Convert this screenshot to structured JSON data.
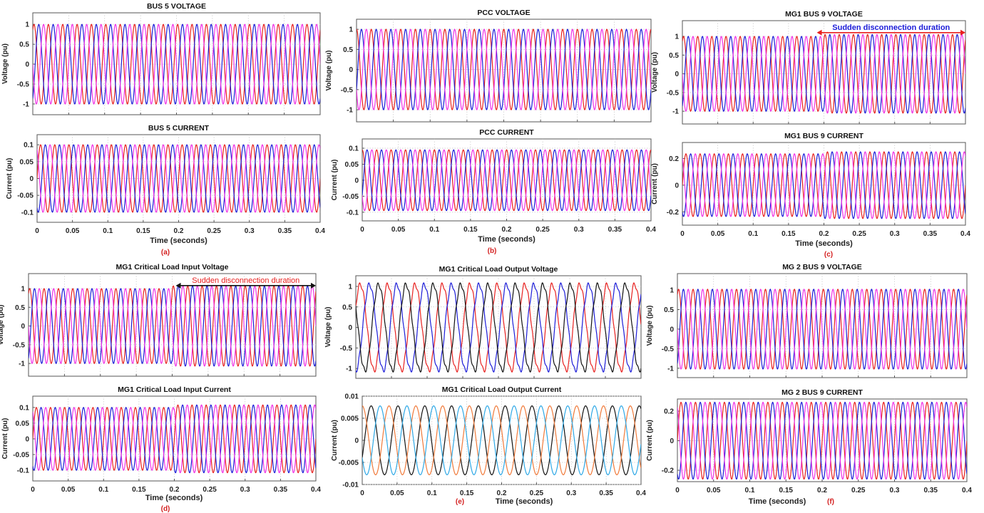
{
  "chart_data": [
    {
      "panel": "a",
      "type": "line",
      "title": "BUS 5 VOLTAGE",
      "ylabel": "Voltage (pu)",
      "xlabel": "",
      "xlim": [
        0,
        0.4
      ],
      "ylim": [
        -1.27,
        1.29
      ],
      "yticks": [
        "-1",
        "-0.5",
        "0",
        "0.5",
        "1"
      ],
      "ytick_values": [
        -1,
        -0.5,
        0,
        0.5,
        1
      ],
      "grid": true,
      "series": [
        {
          "color": "#e8201f",
          "amplitude": 1,
          "frequency_hz": 50,
          "phase_deg": 60
        },
        {
          "color": "#1c1cd8",
          "amplitude": 1,
          "frequency_hz": 50,
          "phase_deg": -60
        },
        {
          "color": "#f032e6",
          "amplitude": 1,
          "frequency_hz": 50,
          "phase_deg": 180
        }
      ]
    },
    {
      "panel": "a",
      "type": "line",
      "title": "BUS 5 CURRENT",
      "ylabel": "Current (pu)",
      "xlabel": "Time (seconds)",
      "xlim": [
        0,
        0.4
      ],
      "ylim": [
        -0.13,
        0.13
      ],
      "yticks": [
        "-0.1",
        "-0.05",
        "0",
        "0.05",
        "0.1"
      ],
      "ytick_values": [
        -0.1,
        -0.05,
        0,
        0.05,
        0.1
      ],
      "grid": true,
      "xticks": [
        "0",
        "0.05",
        "0.1",
        "0.15",
        "0.2",
        "0.25",
        "0.3",
        "0.35",
        "0.4"
      ],
      "series": [
        {
          "color": "#e8201f",
          "amplitude": 0.1,
          "frequency_hz": 50,
          "phase_deg": 0
        },
        {
          "color": "#1c1cd8",
          "amplitude": 0.1,
          "frequency_hz": 50,
          "phase_deg": -120
        },
        {
          "color": "#f032e6",
          "amplitude": 0.1,
          "frequency_hz": 50,
          "phase_deg": 120
        }
      ]
    },
    {
      "panel": "b",
      "type": "line",
      "title": "PCC VOLTAGE",
      "ylabel": "Voltage (pu)",
      "xlabel": "",
      "xlim": [
        0,
        0.4
      ],
      "ylim": [
        -1.3,
        1.25
      ],
      "yticks": [
        "-1",
        "-0.5",
        "0",
        "0.5",
        "1"
      ],
      "ytick_values": [
        -1,
        -0.5,
        0,
        0.5,
        1
      ],
      "grid": true,
      "series": [
        {
          "color": "#e8201f",
          "amplitude": 1,
          "frequency_hz": 50,
          "phase_deg": 90
        },
        {
          "color": "#1c1cd8",
          "amplitude": 1,
          "frequency_hz": 50,
          "phase_deg": -30
        },
        {
          "color": "#f032e6",
          "amplitude": 1,
          "frequency_hz": 50,
          "phase_deg": 210
        }
      ]
    },
    {
      "panel": "b",
      "type": "line",
      "title": "PCC CURRENT",
      "ylabel": "Current (pu)",
      "xlabel": "Time (seconds)",
      "xlim": [
        0,
        0.4
      ],
      "ylim": [
        -0.127,
        0.129
      ],
      "yticks": [
        "-0.1",
        "-0.05",
        "0",
        "0.05",
        "0.1"
      ],
      "ytick_values": [
        -0.1,
        -0.05,
        0,
        0.05,
        0.1
      ],
      "grid": true,
      "xticks": [
        "0",
        "0.05",
        "0.1",
        "0.15",
        "0.2",
        "0.25",
        "0.3",
        "0.35",
        "0.4"
      ],
      "series": [
        {
          "color": "#e8201f",
          "amplitude": 0.095,
          "frequency_hz": 50,
          "phase_deg": 90
        },
        {
          "color": "#1c1cd8",
          "amplitude": 0.095,
          "frequency_hz": 50,
          "phase_deg": -30
        },
        {
          "color": "#f032e6",
          "amplitude": 0.095,
          "frequency_hz": 50,
          "phase_deg": 210
        }
      ]
    },
    {
      "panel": "c",
      "type": "line",
      "title": "MG1 BUS 9 VOLTAGE",
      "ylabel": "Voltage (pu)",
      "xlabel": "",
      "xlim": [
        0,
        0.4
      ],
      "ylim": [
        -1.34,
        1.42
      ],
      "yticks": [
        "-1",
        "-0.5",
        "0",
        "0.5",
        "1"
      ],
      "ytick_values": [
        -1,
        -0.5,
        0,
        0.5,
        1
      ],
      "grid": true,
      "annotation": {
        "text": "Sudden disconnection duration",
        "x_range": [
          0.19,
          0.4
        ],
        "y": 1.1,
        "text_color": "#1c1cd8",
        "arrow_color": "#e8201f"
      },
      "series": [
        {
          "color": "#e8201f",
          "amplitude": 1,
          "amplitude_after_0_2s": 1.05,
          "frequency_hz": 50,
          "phase_deg": 60
        },
        {
          "color": "#1c1cd8",
          "amplitude": 1,
          "amplitude_after_0_2s": 1.05,
          "frequency_hz": 50,
          "phase_deg": -60
        },
        {
          "color": "#f032e6",
          "amplitude": 1,
          "amplitude_after_0_2s": 1.05,
          "frequency_hz": 50,
          "phase_deg": 180
        }
      ]
    },
    {
      "panel": "c",
      "type": "line",
      "title": "MG1 BUS 9 CURRENT",
      "ylabel": "Current (pu)",
      "xlabel": "Time (seconds)",
      "xlim": [
        0,
        0.4
      ],
      "ylim": [
        -0.3,
        0.32
      ],
      "yticks": [
        "-0.2",
        "0",
        "0.2"
      ],
      "ytick_values": [
        -0.2,
        0,
        0.2
      ],
      "grid": true,
      "xticks": [
        "0",
        "0.05",
        "0.1",
        "0.15",
        "0.2",
        "0.25",
        "0.3",
        "0.35",
        "0.4"
      ],
      "series": [
        {
          "color": "#e8201f",
          "amplitude": 0.235,
          "amplitude_after_0_2s": 0.25,
          "frequency_hz": 50,
          "phase_deg": 0
        },
        {
          "color": "#1c1cd8",
          "amplitude": 0.235,
          "amplitude_after_0_2s": 0.25,
          "frequency_hz": 50,
          "phase_deg": -120
        },
        {
          "color": "#f032e6",
          "amplitude": 0.235,
          "amplitude_after_0_2s": 0.25,
          "frequency_hz": 50,
          "phase_deg": 120
        }
      ]
    },
    {
      "panel": "d",
      "type": "line",
      "title": "MG1 Critical Load Input Voltage",
      "ylabel": "Voltage (pu)",
      "xlabel": "",
      "xlim": [
        0,
        0.4
      ],
      "ylim": [
        -1.34,
        1.4
      ],
      "yticks": [
        "-1",
        "-0.5",
        "0",
        "0.5",
        "1"
      ],
      "ytick_values": [
        -1,
        -0.5,
        0,
        0.5,
        1
      ],
      "grid": true,
      "annotation": {
        "text": "Sudden disconnection duration",
        "x_range": [
          0.205,
          0.4
        ],
        "y": 1.08,
        "text_color": "#e8201f",
        "arrow_color": "#111111"
      },
      "series": [
        {
          "color": "#e8201f",
          "amplitude": 1,
          "amplitude_after_0_2s": 1.07,
          "frequency_hz": 50,
          "phase_deg": 60
        },
        {
          "color": "#1c1cd8",
          "amplitude": 1,
          "amplitude_after_0_2s": 1.07,
          "frequency_hz": 50,
          "phase_deg": -60
        },
        {
          "color": "#f032e6",
          "amplitude": 1,
          "amplitude_after_0_2s": 1.07,
          "frequency_hz": 50,
          "phase_deg": 180
        }
      ]
    },
    {
      "panel": "d",
      "type": "line",
      "title": "MG1 Critical Load Input Current",
      "ylabel": "Current (pu)",
      "xlabel": "Time (seconds)",
      "xlim": [
        0,
        0.4
      ],
      "ylim": [
        -0.134,
        0.136
      ],
      "yticks": [
        "-0.1",
        "-0.05",
        "0",
        "0.05",
        "0.1"
      ],
      "ytick_values": [
        -0.1,
        -0.05,
        0,
        0.05,
        0.1
      ],
      "grid": true,
      "xticks": [
        "0",
        "0.05",
        "0.1",
        "0.15",
        "0.2",
        "0.25",
        "0.3",
        "0.35",
        "0.4"
      ],
      "series": [
        {
          "color": "#e8201f",
          "amplitude": 0.1,
          "amplitude_after_0_2s": 0.108,
          "frequency_hz": 50,
          "phase_deg": 0
        },
        {
          "color": "#1c1cd8",
          "amplitude": 0.1,
          "amplitude_after_0_2s": 0.108,
          "frequency_hz": 50,
          "phase_deg": -120
        },
        {
          "color": "#f032e6",
          "amplitude": 0.1,
          "amplitude_after_0_2s": 0.108,
          "frequency_hz": 50,
          "phase_deg": 120
        }
      ]
    },
    {
      "panel": "e",
      "type": "line",
      "title": "MG1 Critical Load Output Voltage",
      "ylabel": "Voltage (pu)",
      "xlabel": "",
      "xlim": [
        0,
        0.4
      ],
      "ylim": [
        -1.24,
        1.26
      ],
      "yticks": [
        "-1",
        "-0.5",
        "0",
        "0.5",
        "1"
      ],
      "ytick_values": [
        -1,
        -0.5,
        0,
        0.5,
        1
      ],
      "grid": true,
      "series": [
        {
          "color": "#e8201f",
          "amplitude": 1,
          "frequency_hz": 26,
          "phase_deg": 30
        },
        {
          "color": "#1c1cd8",
          "amplitude": 1,
          "frequency_hz": 26,
          "phase_deg": -90
        },
        {
          "color": "#111111",
          "amplitude": 1,
          "frequency_hz": 26,
          "phase_deg": 150
        }
      ]
    },
    {
      "panel": "e",
      "type": "line",
      "title": "MG1 Critical Load Output Current",
      "ylabel": "Current (pu)",
      "xlabel": "Time (seconds)",
      "xlim": [
        0,
        0.4
      ],
      "ylim": [
        -0.01,
        0.01
      ],
      "yticks": [
        "-0.01",
        "-0.005",
        "0",
        "0.005",
        "0.01"
      ],
      "ytick_values": [
        -0.01,
        -0.005,
        0,
        0.005,
        0.01
      ],
      "grid": true,
      "xticks": [
        "0",
        "0.05",
        "0.1",
        "0.15",
        "0.2",
        "0.25",
        "0.3",
        "0.35",
        "0.4"
      ],
      "series": [
        {
          "color": "#111111",
          "amplitude": 0.0078,
          "frequency_hz": 26,
          "phase_deg": -30
        },
        {
          "color": "#f07a3a",
          "amplitude": 0.0078,
          "frequency_hz": 26,
          "phase_deg": 90
        },
        {
          "color": "#2ea8e6",
          "amplitude": 0.0078,
          "frequency_hz": 26,
          "phase_deg": 210
        }
      ]
    },
    {
      "panel": "f",
      "type": "line",
      "title": "MG 2 BUS 9 VOLTAGE",
      "ylabel": "Voltage (pu)",
      "xlabel": "",
      "xlim": [
        0,
        0.4
      ],
      "ylim": [
        -1.24,
        1.42
      ],
      "yticks": [
        "-1",
        "-0.5",
        "0",
        "0.5",
        "1"
      ],
      "ytick_values": [
        -1,
        -0.5,
        0,
        0.5,
        1
      ],
      "grid": true,
      "series": [
        {
          "color": "#e8201f",
          "amplitude": 1.02,
          "frequency_hz": 50,
          "phase_deg": 60
        },
        {
          "color": "#1c1cd8",
          "amplitude": 1.02,
          "frequency_hz": 50,
          "phase_deg": -60
        },
        {
          "color": "#f032e6",
          "amplitude": 1.02,
          "frequency_hz": 50,
          "phase_deg": 180
        }
      ]
    },
    {
      "panel": "f",
      "type": "line",
      "title": "MG 2 BUS 9 CURRENT",
      "ylabel": "Current (pu)",
      "xlabel": "Time (seconds)",
      "xlim": [
        0,
        0.4
      ],
      "ylim": [
        -0.277,
        0.282
      ],
      "yticks": [
        "-0.2",
        "0",
        "0.2"
      ],
      "ytick_values": [
        -0.2,
        0,
        0.2
      ],
      "grid": true,
      "xticks": [
        "0",
        "0.05",
        "0.1",
        "0.15",
        "0.2",
        "0.25",
        "0.3",
        "0.35",
        "0.4"
      ],
      "series": [
        {
          "color": "#e8201f",
          "amplitude": 0.26,
          "frequency_hz": 50,
          "phase_deg": 0
        },
        {
          "color": "#1c1cd8",
          "amplitude": 0.26,
          "frequency_hz": 50,
          "phase_deg": -120
        },
        {
          "color": "#f032e6",
          "amplitude": 0.26,
          "frequency_hz": 50,
          "phase_deg": 120
        }
      ]
    }
  ],
  "panel_labels": [
    "(a)",
    "(b)",
    "(c)",
    "(d)",
    "(e)",
    "(f)"
  ]
}
